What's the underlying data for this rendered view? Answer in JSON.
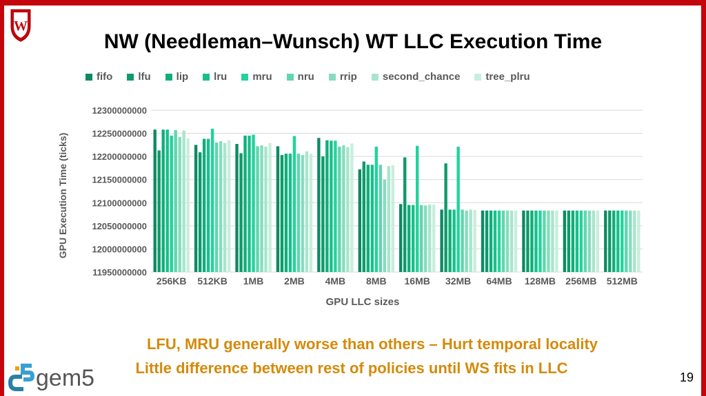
{
  "slide": {
    "title": "NW (Needleman–Wunsch) WT LLC Execution Time",
    "notes": [
      "LFU, MRU generally worse than others – Hurt temporal locality",
      "Little difference between rest of policies until WS fits in LLC"
    ],
    "page_number": "19",
    "logo_text": "gem5",
    "crest_letter": "W"
  },
  "colors": {
    "accent_red": "#c5050c",
    "note_text": "#d48a0a"
  },
  "chart_data": {
    "type": "bar",
    "xlabel": "GPU LLC sizes",
    "ylabel": "GPU Execution Time (ticks)",
    "ylim": [
      11950000000,
      12300000000
    ],
    "yticks": [
      11950000000,
      12000000000,
      12050000000,
      12100000000,
      12150000000,
      12200000000,
      12250000000,
      12300000000
    ],
    "grid": true,
    "legend_position": "top",
    "categories": [
      "256KB",
      "512KB",
      "1MB",
      "2MB",
      "4MB",
      "8MB",
      "16MB",
      "32MB",
      "64MB",
      "128MB",
      "256MB",
      "512MB"
    ],
    "series": [
      {
        "name": "fifo",
        "color": "#0e8a63",
        "values": [
          12258000000,
          12225000000,
          12227000000,
          12222000000,
          12240000000,
          12172000000,
          12097000000,
          12085000000,
          12083000000,
          12083000000,
          12083000000,
          12083000000
        ]
      },
      {
        "name": "lfu",
        "color": "#0f9a6b",
        "values": [
          12213000000,
          12209000000,
          12207000000,
          12203000000,
          12200000000,
          12189000000,
          12198000000,
          12185000000,
          12083000000,
          12083000000,
          12083000000,
          12083000000
        ]
      },
      {
        "name": "lip",
        "color": "#10ae78",
        "values": [
          12258000000,
          12238000000,
          12245000000,
          12206000000,
          12235000000,
          12182000000,
          12095000000,
          12085000000,
          12083000000,
          12083000000,
          12083000000,
          12083000000
        ]
      },
      {
        "name": "lru",
        "color": "#17c08a",
        "values": [
          12258000000,
          12238000000,
          12245000000,
          12206000000,
          12234000000,
          12182000000,
          12095000000,
          12085000000,
          12083000000,
          12083000000,
          12083000000,
          12083000000
        ]
      },
      {
        "name": "mru",
        "color": "#22d39c",
        "values": [
          12245000000,
          12260000000,
          12247000000,
          12244000000,
          12234000000,
          12221000000,
          12223000000,
          12221000000,
          12083000000,
          12083000000,
          12083000000,
          12083000000
        ]
      },
      {
        "name": "nru",
        "color": "#5fd7ae",
        "values": [
          12257000000,
          12230000000,
          12222000000,
          12206000000,
          12221000000,
          12182000000,
          12095000000,
          12085000000,
          12083000000,
          12083000000,
          12083000000,
          12083000000
        ]
      },
      {
        "name": "rrip",
        "color": "#86ddbe",
        "values": [
          12242000000,
          12233000000,
          12224000000,
          12203000000,
          12224000000,
          12150000000,
          12094000000,
          12083000000,
          12083000000,
          12083000000,
          12083000000,
          12083000000
        ]
      },
      {
        "name": "second_chance",
        "color": "#a9e5cd",
        "values": [
          12256000000,
          12229000000,
          12221000000,
          12211000000,
          12220000000,
          12179000000,
          12096000000,
          12085000000,
          12083000000,
          12083000000,
          12083000000,
          12083000000
        ]
      },
      {
        "name": "tree_plru",
        "color": "#c8eedd",
        "values": [
          12239000000,
          12235000000,
          12229000000,
          12206000000,
          12228000000,
          12181000000,
          12096000000,
          12084000000,
          12083000000,
          12083000000,
          12083000000,
          12083000000
        ]
      }
    ]
  }
}
